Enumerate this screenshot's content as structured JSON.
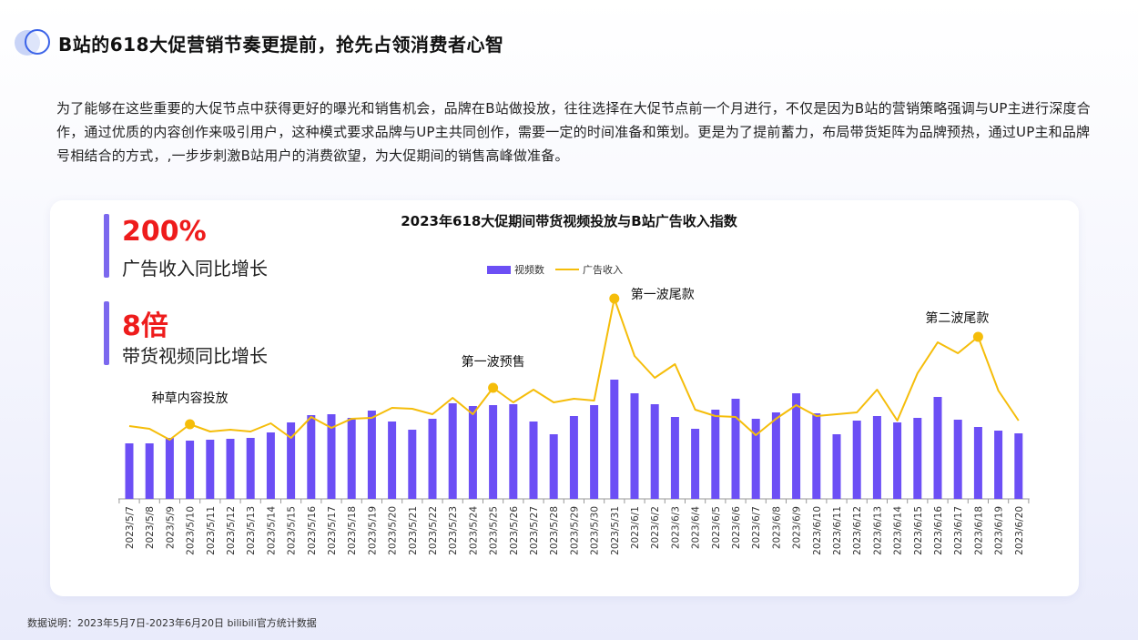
{
  "page": {
    "title": "B站的618大促营销节奏更提前，抢先占领消费者心智",
    "intro": "为了能够在这些重要的大促节点中获得更好的曝光和销售机会，品牌在B站做投放，往往选择在大促节点前一个月进行，不仅是因为B站的营销策略强调与UP主进行深度合作，通过优质的内容创作来吸引用户，这种模式要求品牌与UP主共同创作，需要一定的时间准备和策划。更是为了提前蓄力，布局带货矩阵为品牌预热，通过UP主和品牌号相结合的方式，,一步步刺激B站用户的消费欲望，为大促期间的销售高峰做准备。",
    "footnote": "数据说明：2023年5月7日-2023年6月20日 bilibili官方统计数据"
  },
  "stats": [
    {
      "value": "200%",
      "label": "广告收入同比增长"
    },
    {
      "value": "8倍",
      "label": "带货视频同比增长"
    }
  ],
  "colors": {
    "bar": "#6c4ff5",
    "line": "#f5bd0a",
    "highlight": "#ee1c1c",
    "accent": "#7b68ee"
  },
  "chart_data": {
    "type": "bar",
    "title": "2023年618大促期间带货视频投放与B站广告收入指数",
    "legend_position": "top-center",
    "categories": [
      "2023/5/7",
      "2023/5/8",
      "2023/5/9",
      "2023/5/10",
      "2023/5/11",
      "2023/5/12",
      "2023/5/13",
      "2023/5/14",
      "2023/5/15",
      "2023/5/16",
      "2023/5/17",
      "2023/5/18",
      "2023/5/19",
      "2023/5/20",
      "2023/5/21",
      "2023/5/22",
      "2023/5/23",
      "2023/5/24",
      "2023/5/25",
      "2023/5/26",
      "2023/5/27",
      "2023/5/28",
      "2023/5/29",
      "2023/5/30",
      "2023/5/31",
      "2023/6/1",
      "2023/6/2",
      "2023/6/3",
      "2023/6/4",
      "2023/6/5",
      "2023/6/6",
      "2023/6/7",
      "2023/6/8",
      "2023/6/9",
      "2023/6/10",
      "2023/6/11",
      "2023/6/12",
      "2023/6/13",
      "2023/6/14",
      "2023/6/15",
      "2023/6/16",
      "2023/6/17",
      "2023/6/18",
      "2023/6/19",
      "2023/6/20"
    ],
    "series": [
      {
        "name": "视频数",
        "type": "bar",
        "values": [
          61,
          61,
          67,
          64,
          65,
          66,
          67,
          73,
          84,
          92,
          93,
          89,
          97,
          85,
          76,
          88,
          105,
          102,
          103,
          104,
          85,
          71,
          91,
          103,
          131,
          116,
          104,
          90,
          77,
          98,
          110,
          88,
          95,
          116,
          94,
          71,
          86,
          91,
          84,
          89,
          112,
          87,
          79,
          75,
          72
        ]
      },
      {
        "name": "广告收入",
        "type": "line",
        "values": [
          80,
          77,
          65,
          82,
          74,
          76,
          74,
          83,
          67,
          90,
          78,
          88,
          89,
          100,
          99,
          93,
          111,
          93,
          122,
          106,
          120,
          106,
          110,
          108,
          220,
          157,
          133,
          148,
          98,
          91,
          90,
          70,
          88,
          103,
          91,
          93,
          95,
          120,
          86,
          138,
          172,
          160,
          178,
          119,
          86
        ]
      }
    ],
    "annotations": [
      {
        "index": 3,
        "series": "广告收入",
        "text": "种草内容投放"
      },
      {
        "index": 18,
        "series": "广告收入",
        "text": "第一波预售"
      },
      {
        "index": 24,
        "series": "广告收入",
        "text": "第一波尾款"
      },
      {
        "index": 42,
        "series": "广告收入",
        "text": "第二波尾款"
      }
    ],
    "grid": false
  }
}
